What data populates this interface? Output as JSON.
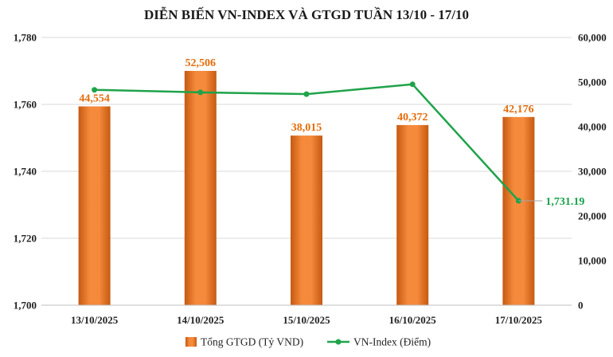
{
  "chart_data": {
    "type": "bar+line",
    "title": "DIỄN BIẾN VN-INDEX VÀ GTGD TUẦN 13/10 - 17/10",
    "categories": [
      "13/10/2025",
      "14/10/2025",
      "15/10/2025",
      "16/10/2025",
      "17/10/2025"
    ],
    "series": [
      {
        "name": "Tổng GTGD (Tỷ VND)",
        "type": "bar",
        "axis": "right",
        "values": [
          44554,
          52506,
          38015,
          40372,
          42176
        ],
        "labels": [
          "44,554",
          "52,506",
          "38,015",
          "40,372",
          "42,176"
        ],
        "color": "#f07f35"
      },
      {
        "name": "VN-Index (Điểm)",
        "type": "line",
        "axis": "left",
        "values": [
          1764.35,
          1763.59,
          1763.07,
          1766.0,
          1731.19
        ],
        "labels": [
          "",
          "",
          "",
          "",
          "1,731.19"
        ],
        "color": "#1fa34a"
      }
    ],
    "left_axis": {
      "ylim": [
        1700,
        1780
      ],
      "ticks": [
        "1,700",
        "1,720",
        "1,740",
        "1,760",
        "1,780"
      ]
    },
    "right_axis": {
      "ylim": [
        0,
        60000
      ],
      "ticks": [
        "0",
        "10,000",
        "20,000",
        "30,000",
        "40,000",
        "50,000",
        "60,000"
      ]
    },
    "grid": true,
    "legend_position": "bottom"
  }
}
